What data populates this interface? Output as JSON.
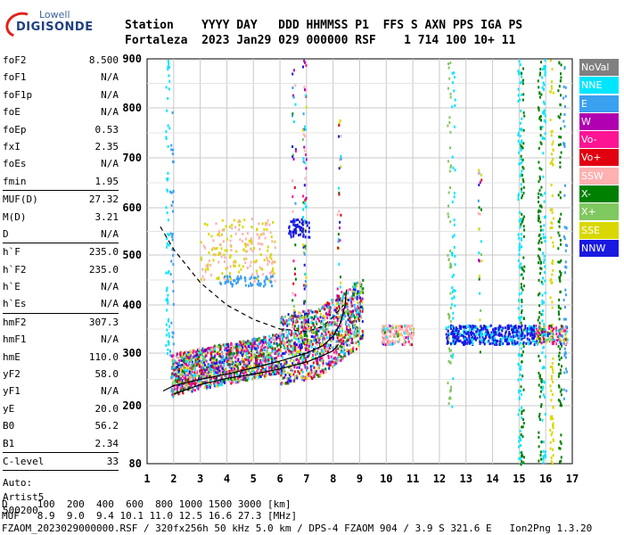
{
  "logo": {
    "line1": "Lowell",
    "line2": "DIGISONDE"
  },
  "header": {
    "line1": "Station    YYYY DAY   DDD HHMMSS P1  FFS S AXN PPS IGA PS",
    "line2": "Fortaleza  2023 Jan29 029 000000 RSF    1 714 100 10+ 11"
  },
  "params": [
    [
      [
        "foF2",
        "8.500"
      ],
      [
        "foF1",
        "N/A"
      ],
      [
        "foF1p",
        "N/A"
      ],
      [
        "foE",
        "N/A"
      ],
      [
        "foEp",
        "0.53"
      ],
      [
        "fxI",
        "2.35"
      ],
      [
        "foEs",
        "N/A"
      ],
      [
        "fmin",
        "1.95"
      ]
    ],
    [
      [
        "MUF(D)",
        "27.32"
      ],
      [
        "M(D)",
        "3.21"
      ],
      [
        "D",
        "N/A"
      ]
    ],
    [
      [
        "h`F",
        "235.0"
      ],
      [
        "h`F2",
        "235.0"
      ],
      [
        "h`E",
        "N/A"
      ],
      [
        "h`Es",
        "N/A"
      ]
    ],
    [
      [
        "hmF2",
        "307.3"
      ],
      [
        "hmF1",
        "N/A"
      ],
      [
        "hmE",
        "110.0"
      ],
      [
        "yF2",
        "58.0"
      ],
      [
        "yF1",
        "N/A"
      ],
      [
        "yE",
        "20.0"
      ],
      [
        "B0",
        "56.2"
      ],
      [
        "B1",
        "2.34"
      ]
    ],
    [
      [
        "C-level",
        "33"
      ]
    ]
  ],
  "auto": {
    "l1": "Auto:",
    "l2": "Artist5",
    "l3": "500200"
  },
  "legend": [
    {
      "label": "NoVal",
      "color": "#808080"
    },
    {
      "label": "NNE",
      "color": "#00e5ff"
    },
    {
      "label": "E",
      "color": "#3aa0f0"
    },
    {
      "label": "W",
      "color": "#b000b0"
    },
    {
      "label": "Vo-",
      "color": "#ff1493"
    },
    {
      "label": "Vo+",
      "color": "#e00010"
    },
    {
      "label": "SSW",
      "color": "#ffb0b0"
    },
    {
      "label": "X-",
      "color": "#008000"
    },
    {
      "label": "X+",
      "color": "#80c860"
    },
    {
      "label": "SSE",
      "color": "#d8d800"
    },
    {
      "label": "NNW",
      "color": "#1818e0"
    }
  ],
  "bottom": {
    "line1": "D     100  200  400  600  800 1000 1500 3000 [km]",
    "line2": "MUF   8.9  9.0  9.4 10.1 11.0 12.5 16.6 27.3 [MHz]",
    "line3": "FZAOM_2023029000000.RSF / 320fx256h 50 kHz 5.0 km / DPS-4 FZAOM 904 / 3.9 S 321.6 E   Ion2Png 1.3.20"
  },
  "chart_data": {
    "type": "scatter",
    "title": "",
    "xlabel": "",
    "ylabel": "",
    "xlim": [
      1,
      17
    ],
    "ylim": [
      80,
      900
    ],
    "xticks": [
      1,
      2,
      3,
      4,
      5,
      6,
      7,
      8,
      9,
      10,
      11,
      12,
      13,
      14,
      15,
      16,
      17
    ],
    "yticks": [
      80,
      200,
      300,
      400,
      500,
      600,
      700,
      800,
      900
    ],
    "grid": true,
    "legend_placement": "right",
    "series": [
      {
        "name": "Virtual height trace",
        "color": "#000000",
        "style": "solid",
        "points": [
          [
            1.6,
            228
          ],
          [
            2,
            238
          ],
          [
            3,
            250
          ],
          [
            4,
            260
          ],
          [
            5,
            272
          ],
          [
            6,
            285
          ],
          [
            7,
            300
          ],
          [
            7.6,
            315
          ],
          [
            8,
            335
          ],
          [
            8.3,
            365
          ],
          [
            8.45,
            400
          ],
          [
            8.5,
            430
          ]
        ]
      },
      {
        "name": "Profile lower branch",
        "color": "#000000",
        "style": "solid",
        "points": [
          [
            2,
            222
          ],
          [
            3,
            240
          ],
          [
            4,
            252
          ],
          [
            5,
            260
          ],
          [
            6,
            270
          ],
          [
            7,
            283
          ],
          [
            7.6,
            295
          ],
          [
            8,
            305
          ],
          [
            8.2,
            318
          ]
        ]
      },
      {
        "name": "MUF curve",
        "color": "#000000",
        "style": "dashed",
        "points": [
          [
            1.5,
            560
          ],
          [
            2,
            512
          ],
          [
            3,
            445
          ],
          [
            4,
            400
          ],
          [
            5,
            370
          ],
          [
            6,
            350
          ],
          [
            7,
            345
          ],
          [
            7.6,
            355
          ],
          [
            8,
            375
          ],
          [
            8.4,
            400
          ]
        ]
      },
      {
        "name": "Echo cloud F-trace",
        "color": "mixed",
        "points": [
          [
            2,
            290
          ],
          [
            3,
            300
          ],
          [
            4,
            315
          ],
          [
            5,
            320
          ],
          [
            6,
            330
          ],
          [
            7,
            340
          ],
          [
            8,
            345
          ],
          [
            9,
            345
          ]
        ]
      },
      {
        "name": "Echo band 10-17 MHz",
        "color": "mixed",
        "points": [
          [
            10,
            345
          ],
          [
            11,
            350
          ],
          [
            12.5,
            350
          ],
          [
            14,
            350
          ],
          [
            15.5,
            350
          ],
          [
            16.5,
            350
          ]
        ]
      }
    ]
  }
}
